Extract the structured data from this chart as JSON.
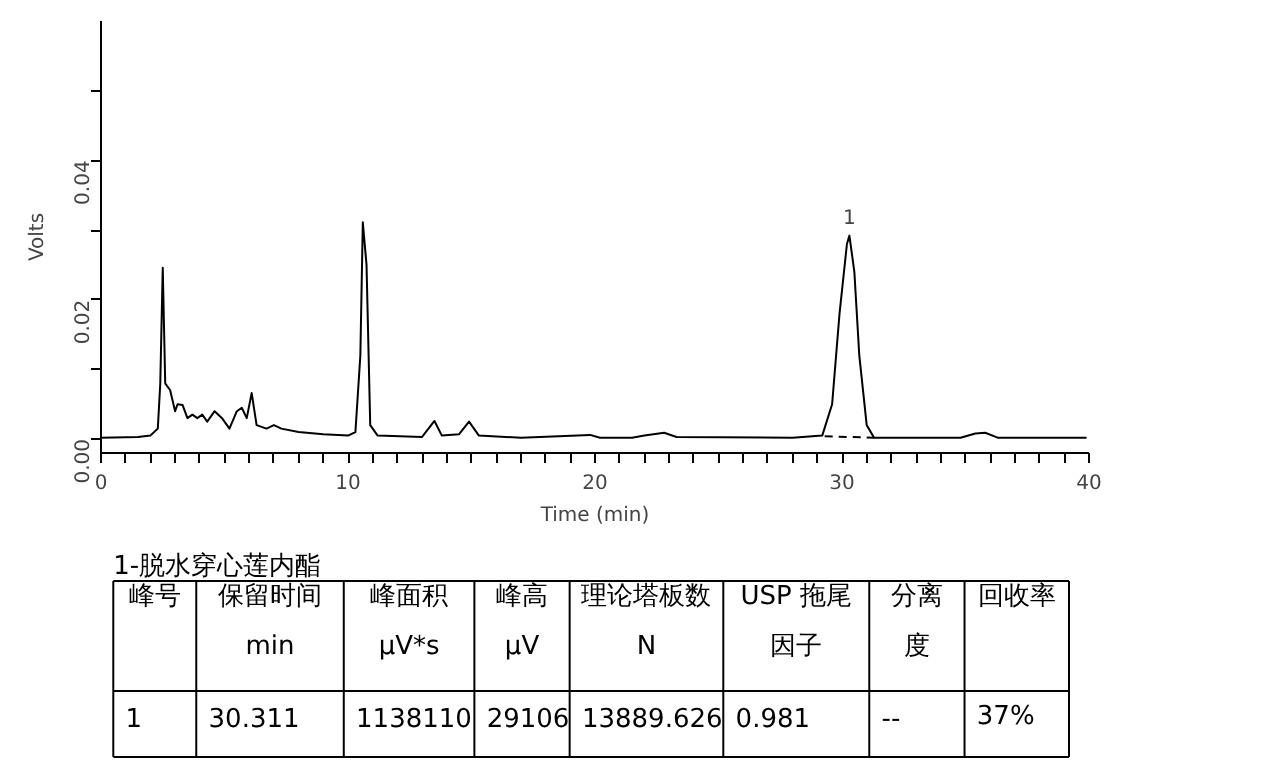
{
  "chart_data": {
    "type": "line",
    "xlabel": "Time (min)",
    "ylabel": "Volts",
    "xlim": [
      0,
      40
    ],
    "ylim": [
      -0.002,
      0.06
    ],
    "xticks": [
      0,
      {
        "value": 1,
        "label": null
      },
      {
        "value": 2,
        "label": null
      },
      {
        "value": 3,
        "label": null
      },
      {
        "value": 4,
        "label": null
      },
      {
        "value": 5,
        "label": null
      },
      {
        "value": 6,
        "label": null
      },
      {
        "value": 7,
        "label": null
      },
      {
        "value": 8,
        "label": null
      },
      {
        "value": 9,
        "label": null
      },
      10,
      {
        "value": 11,
        "label": null
      },
      {
        "value": 12,
        "label": null
      },
      {
        "value": 13,
        "label": null
      },
      {
        "value": 14,
        "label": null
      },
      {
        "value": 15,
        "label": null
      },
      {
        "value": 16,
        "label": null
      },
      {
        "value": 17,
        "label": null
      },
      {
        "value": 18,
        "label": null
      },
      {
        "value": 19,
        "label": null
      },
      20,
      {
        "value": 21,
        "label": null
      },
      {
        "value": 22,
        "label": null
      },
      {
        "value": 23,
        "label": null
      },
      {
        "value": 24,
        "label": null
      },
      {
        "value": 25,
        "label": null
      },
      {
        "value": 26,
        "label": null
      },
      {
        "value": 27,
        "label": null
      },
      {
        "value": 28,
        "label": null
      },
      {
        "value": 29,
        "label": null
      },
      30,
      {
        "value": 31,
        "label": null
      },
      {
        "value": 32,
        "label": null
      },
      {
        "value": 33,
        "label": null
      },
      {
        "value": 34,
        "label": null
      },
      {
        "value": 35,
        "label": null
      },
      {
        "value": 36,
        "label": null
      },
      {
        "value": 37,
        "label": null
      },
      {
        "value": 38,
        "label": null
      },
      {
        "value": 39,
        "label": null
      },
      40
    ],
    "yticks": [
      {
        "value": 0,
        "label": "0.00"
      },
      {
        "value": 0.01,
        "label": null
      },
      {
        "value": 0.02,
        "label": "0.02"
      },
      {
        "value": 0.03,
        "label": null
      },
      {
        "value": 0.04,
        "label": "0.04"
      },
      {
        "value": 0.05,
        "label": null
      }
    ],
    "grid": false,
    "series": [
      {
        "color": "#000000",
        "x": [
          0,
          1.5,
          2.0,
          2.3,
          2.4,
          2.5,
          2.6,
          2.8,
          3.0,
          3.1,
          3.3,
          3.5,
          3.7,
          3.9,
          4.1,
          4.3,
          4.6,
          4.9,
          5.2,
          5.5,
          5.7,
          5.9,
          6.1,
          6.3,
          6.7,
          7.0,
          7.3,
          8.0,
          9.0,
          10.0,
          10.3,
          10.5,
          10.6,
          10.75,
          10.9,
          11.2,
          13.0,
          13.5,
          13.8,
          14.5,
          14.9,
          15.3,
          17.0,
          19.8,
          20.2,
          21.5,
          22.0,
          22.8,
          23.3,
          28.0,
          29.2,
          29.6,
          29.9,
          30.2,
          30.3,
          30.5,
          30.7,
          31.0,
          31.3,
          34.8,
          35.4,
          35.8,
          36.3,
          38.5,
          39.9
        ],
        "values": [
          0.0002,
          0.0003,
          0.0005,
          0.0015,
          0.008,
          0.0246,
          0.008,
          0.007,
          0.004,
          0.005,
          0.0049,
          0.003,
          0.0035,
          0.003,
          0.0035,
          0.0025,
          0.004,
          0.003,
          0.0015,
          0.004,
          0.0045,
          0.003,
          0.0066,
          0.002,
          0.0015,
          0.002,
          0.0015,
          0.001,
          0.0007,
          0.0005,
          0.001,
          0.012,
          0.0311,
          0.025,
          0.002,
          0.0005,
          0.0003,
          0.0026,
          0.0005,
          0.0007,
          0.0025,
          0.0005,
          0.0002,
          0.0006,
          0.0002,
          0.0002,
          0.0005,
          0.0009,
          0.0003,
          0.0002,
          0.0005,
          0.005,
          0.018,
          0.028,
          0.0292,
          0.024,
          0.012,
          0.002,
          0.0002,
          0.0002,
          0.0008,
          0.0009,
          0.0002,
          0.0002,
          0.0002
        ]
      },
      {
        "color": "#000000",
        "line_style": "dashed",
        "x": [
          29.3,
          31.3
        ],
        "values": [
          0.0004,
          0.0002
        ]
      }
    ],
    "annotations": [
      {
        "text": "1",
        "x": 30.3,
        "y": 0.0292
      },
      "1-脱水穿心莲内酯",
      "峰号",
      "保留时间\nmin",
      "峰面积\nμV*s",
      "峰高\nμV",
      "理论塔板数\nN",
      "USP 拖尾因子",
      "分离度",
      "回收率",
      "1",
      "30.311",
      "1138110",
      "29106",
      "13889.626",
      "0.981",
      "--",
      "37%"
    ]
  }
}
